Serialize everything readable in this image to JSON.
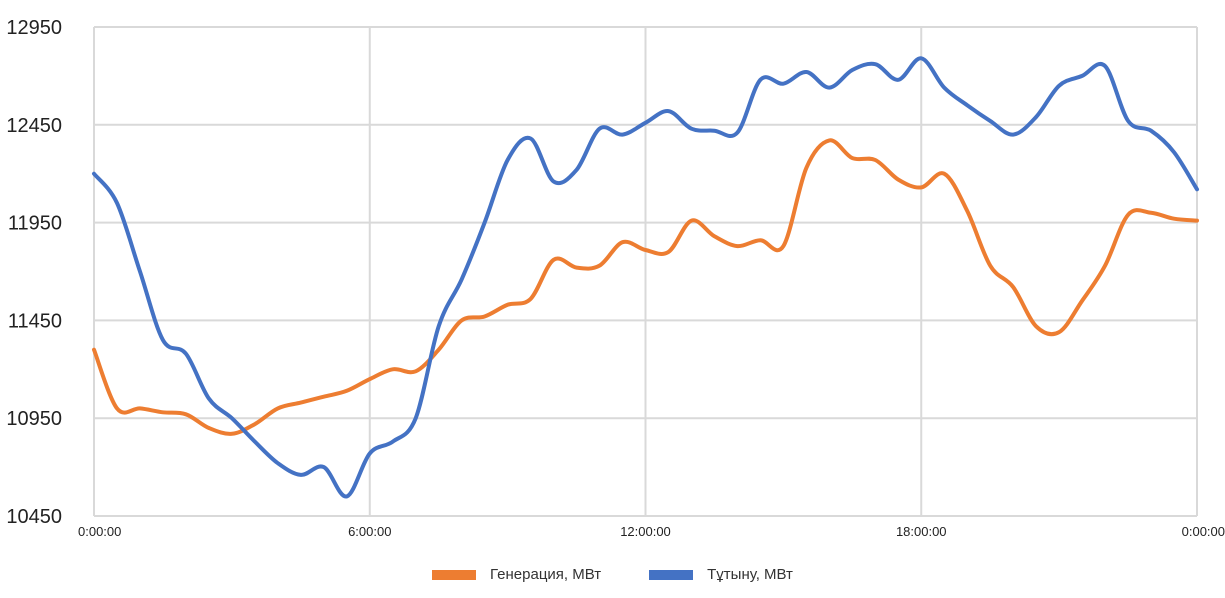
{
  "chart_data": {
    "type": "line",
    "title": "",
    "xlabel": "",
    "ylabel": "",
    "ylim": [
      10450,
      12950
    ],
    "yticks": [
      "12950",
      "12450",
      "11950",
      "11450",
      "10950",
      "10450"
    ],
    "xticks": [
      "0:00:00",
      "6:00:00",
      "12:00:00",
      "18:00:00",
      "0:00:00"
    ],
    "grid": true,
    "legend_position": "bottom",
    "x_hours": [
      0,
      0.5,
      1,
      1.5,
      2,
      2.5,
      3,
      3.5,
      4,
      4.5,
      5,
      5.5,
      6,
      6.5,
      7,
      7.5,
      8,
      8.5,
      9,
      9.5,
      10,
      10.5,
      11,
      11.5,
      12,
      12.5,
      13,
      13.5,
      14,
      14.5,
      15,
      15.5,
      16,
      16.5,
      17,
      17.5,
      18,
      18.5,
      19,
      19.5,
      20,
      20.5,
      21,
      21.5,
      22,
      22.5,
      23,
      23.5,
      24
    ],
    "series": [
      {
        "name": "Генерация, МВт",
        "color": "#ed7d31",
        "values": [
          11300,
          11000,
          11000,
          10980,
          10970,
          10900,
          10870,
          10920,
          11000,
          11030,
          11060,
          11090,
          11150,
          11200,
          11190,
          11300,
          11450,
          11470,
          11530,
          11560,
          11760,
          11720,
          11730,
          11850,
          11810,
          11800,
          11960,
          11880,
          11830,
          11860,
          11830,
          12230,
          12370,
          12280,
          12270,
          12170,
          12130,
          12200,
          12010,
          11730,
          11620,
          11420,
          11390,
          11550,
          11730,
          11990,
          12000,
          11970,
          11960
        ]
      },
      {
        "name": "Тұтыну, МВт",
        "color": "#4472c4",
        "values": [
          12200,
          12050,
          11700,
          11350,
          11280,
          11050,
          10950,
          10830,
          10720,
          10660,
          10700,
          10550,
          10770,
          10830,
          10950,
          11420,
          11660,
          11950,
          12270,
          12380,
          12160,
          12220,
          12430,
          12400,
          12460,
          12520,
          12430,
          12420,
          12410,
          12680,
          12660,
          12720,
          12640,
          12730,
          12760,
          12680,
          12790,
          12640,
          12550,
          12470,
          12400,
          12490,
          12650,
          12700,
          12750,
          12470,
          12420,
          12310,
          12120
        ]
      }
    ]
  }
}
